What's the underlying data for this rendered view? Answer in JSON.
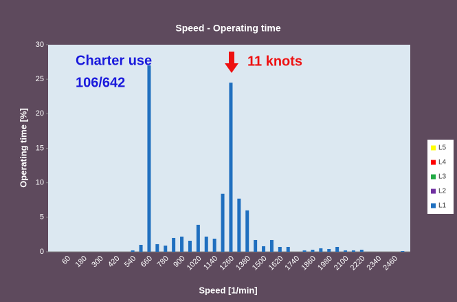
{
  "chart_data": {
    "type": "bar",
    "title": "Speed - Operating time",
    "x_label": "Speed  [1/min]",
    "y_label": "Operating time [%]",
    "annotations": [
      "Charter use",
      "106/642",
      "11 knots"
    ],
    "categories": [
      60,
      null,
      180,
      null,
      300,
      null,
      420,
      null,
      540,
      null,
      660,
      null,
      780,
      null,
      900,
      null,
      1020,
      null,
      1140,
      null,
      1260,
      null,
      1380,
      null,
      1500,
      null,
      1620,
      null,
      1740,
      null,
      1860,
      null,
      1980,
      null,
      2100,
      null,
      2220,
      null,
      2340,
      null,
      2460,
      null
    ],
    "series": [
      {
        "name": "L1",
        "color": "#1f6fbf",
        "values": [
          0,
          0,
          0,
          0,
          0,
          0,
          0,
          0,
          0.2,
          1.0,
          27,
          1.1,
          0.9,
          2.0,
          2.2,
          1.6,
          3.9,
          2.2,
          1.9,
          8.4,
          24.5,
          7.7,
          6.0,
          1.7,
          0.8,
          1.7,
          0.7,
          0.7,
          0,
          0.2,
          0.3,
          0.5,
          0.4,
          0.7,
          0.2,
          0.2,
          0.3,
          0,
          0,
          0,
          0,
          0.1
        ]
      }
    ],
    "other_legend_entries": [
      {
        "name": "L5",
        "color": "#ffff00"
      },
      {
        "name": "L4",
        "color": "#ff0000"
      },
      {
        "name": "L3",
        "color": "#22aa44"
      },
      {
        "name": "L2",
        "color": "#7030a0"
      }
    ],
    "ylim": [
      0,
      30
    ],
    "yticks": [
      0,
      5,
      10,
      15,
      20,
      25,
      30
    ],
    "grid": false
  }
}
